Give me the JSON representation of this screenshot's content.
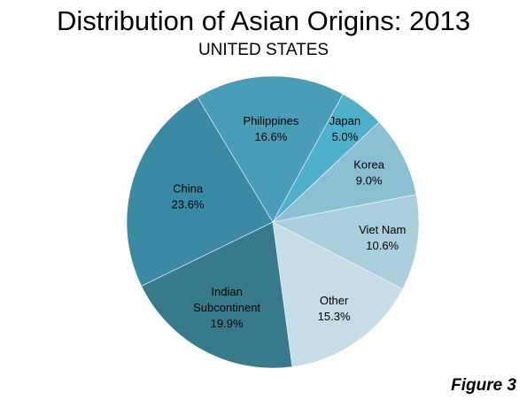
{
  "title": "Distribution of Asian Origins: 2013",
  "subtitle": "UNITED STATES",
  "figure_label": "Figure 3",
  "chart_data": {
    "type": "pie",
    "title": "Distribution of Asian Origins: 2013",
    "subtitle": "UNITED STATES",
    "slices": [
      {
        "label_lines": [
          "China"
        ],
        "value": 23.6,
        "value_label": "23.6%",
        "color": "#3b8aa3"
      },
      {
        "label_lines": [
          "Philippines"
        ],
        "value": 16.6,
        "value_label": "16.6%",
        "color": "#4a9db6"
      },
      {
        "label_lines": [
          "Japan"
        ],
        "value": 5.0,
        "value_label": "5.0%",
        "color": "#4fb0cb"
      },
      {
        "label_lines": [
          "Korea"
        ],
        "value": 9.0,
        "value_label": "9.0%",
        "color": "#8bbfd1"
      },
      {
        "label_lines": [
          "Viet Nam"
        ],
        "value": 10.6,
        "value_label": "10.6%",
        "color": "#aacfdd"
      },
      {
        "label_lines": [
          "Other"
        ],
        "value": 15.3,
        "value_label": "15.3%",
        "color": "#c6dce6"
      },
      {
        "label_lines": [
          "Indian",
          "Subcontinent"
        ],
        "value": 19.9,
        "value_label": "19.9%",
        "color": "#367a8c"
      }
    ]
  }
}
